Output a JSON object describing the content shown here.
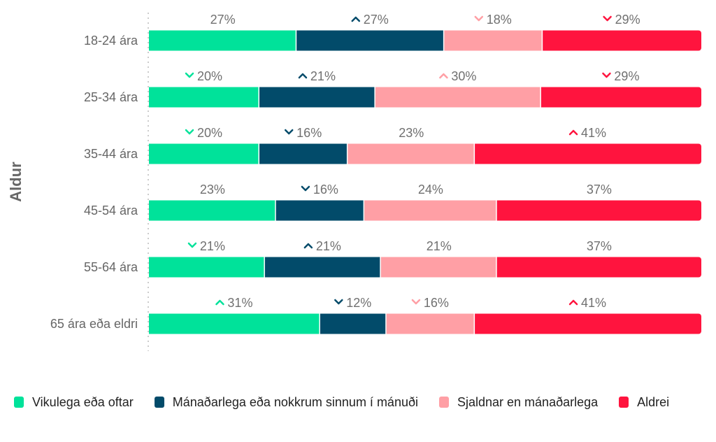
{
  "chart_data": {
    "type": "bar",
    "orientation": "horizontal",
    "stacked": true,
    "ylabel": "Aldur",
    "categories": [
      "18-24 ára",
      "25-34 ára",
      "35-44 ára",
      "45-54 ára",
      "55-64 ára",
      "65 ára eða eldri"
    ],
    "series": [
      {
        "name": "Vikulega eða oftar",
        "color": "#00E29A",
        "values": [
          27,
          20,
          20,
          23,
          21,
          31
        ],
        "trend": [
          "none",
          "down",
          "down",
          "none",
          "down",
          "up"
        ]
      },
      {
        "name": "Mánaðarlega eða nokkrum sinnum í mánuði",
        "color": "#024B6A",
        "values": [
          27,
          21,
          16,
          16,
          21,
          12
        ],
        "trend": [
          "up",
          "up",
          "down",
          "down",
          "up",
          "down"
        ]
      },
      {
        "name": "Sjaldnar en mánaðarlega",
        "color": "#FF9FA5",
        "values": [
          18,
          30,
          23,
          24,
          21,
          16
        ],
        "trend": [
          "down",
          "up",
          "none",
          "none",
          "none",
          "down"
        ]
      },
      {
        "name": "Aldrei",
        "color": "#FF143E",
        "values": [
          29,
          29,
          41,
          37,
          37,
          41
        ],
        "trend": [
          "down",
          "down",
          "up",
          "none",
          "none",
          "up"
        ]
      }
    ],
    "value_suffix": "%",
    "legend_position": "bottom-left",
    "grid": false
  }
}
